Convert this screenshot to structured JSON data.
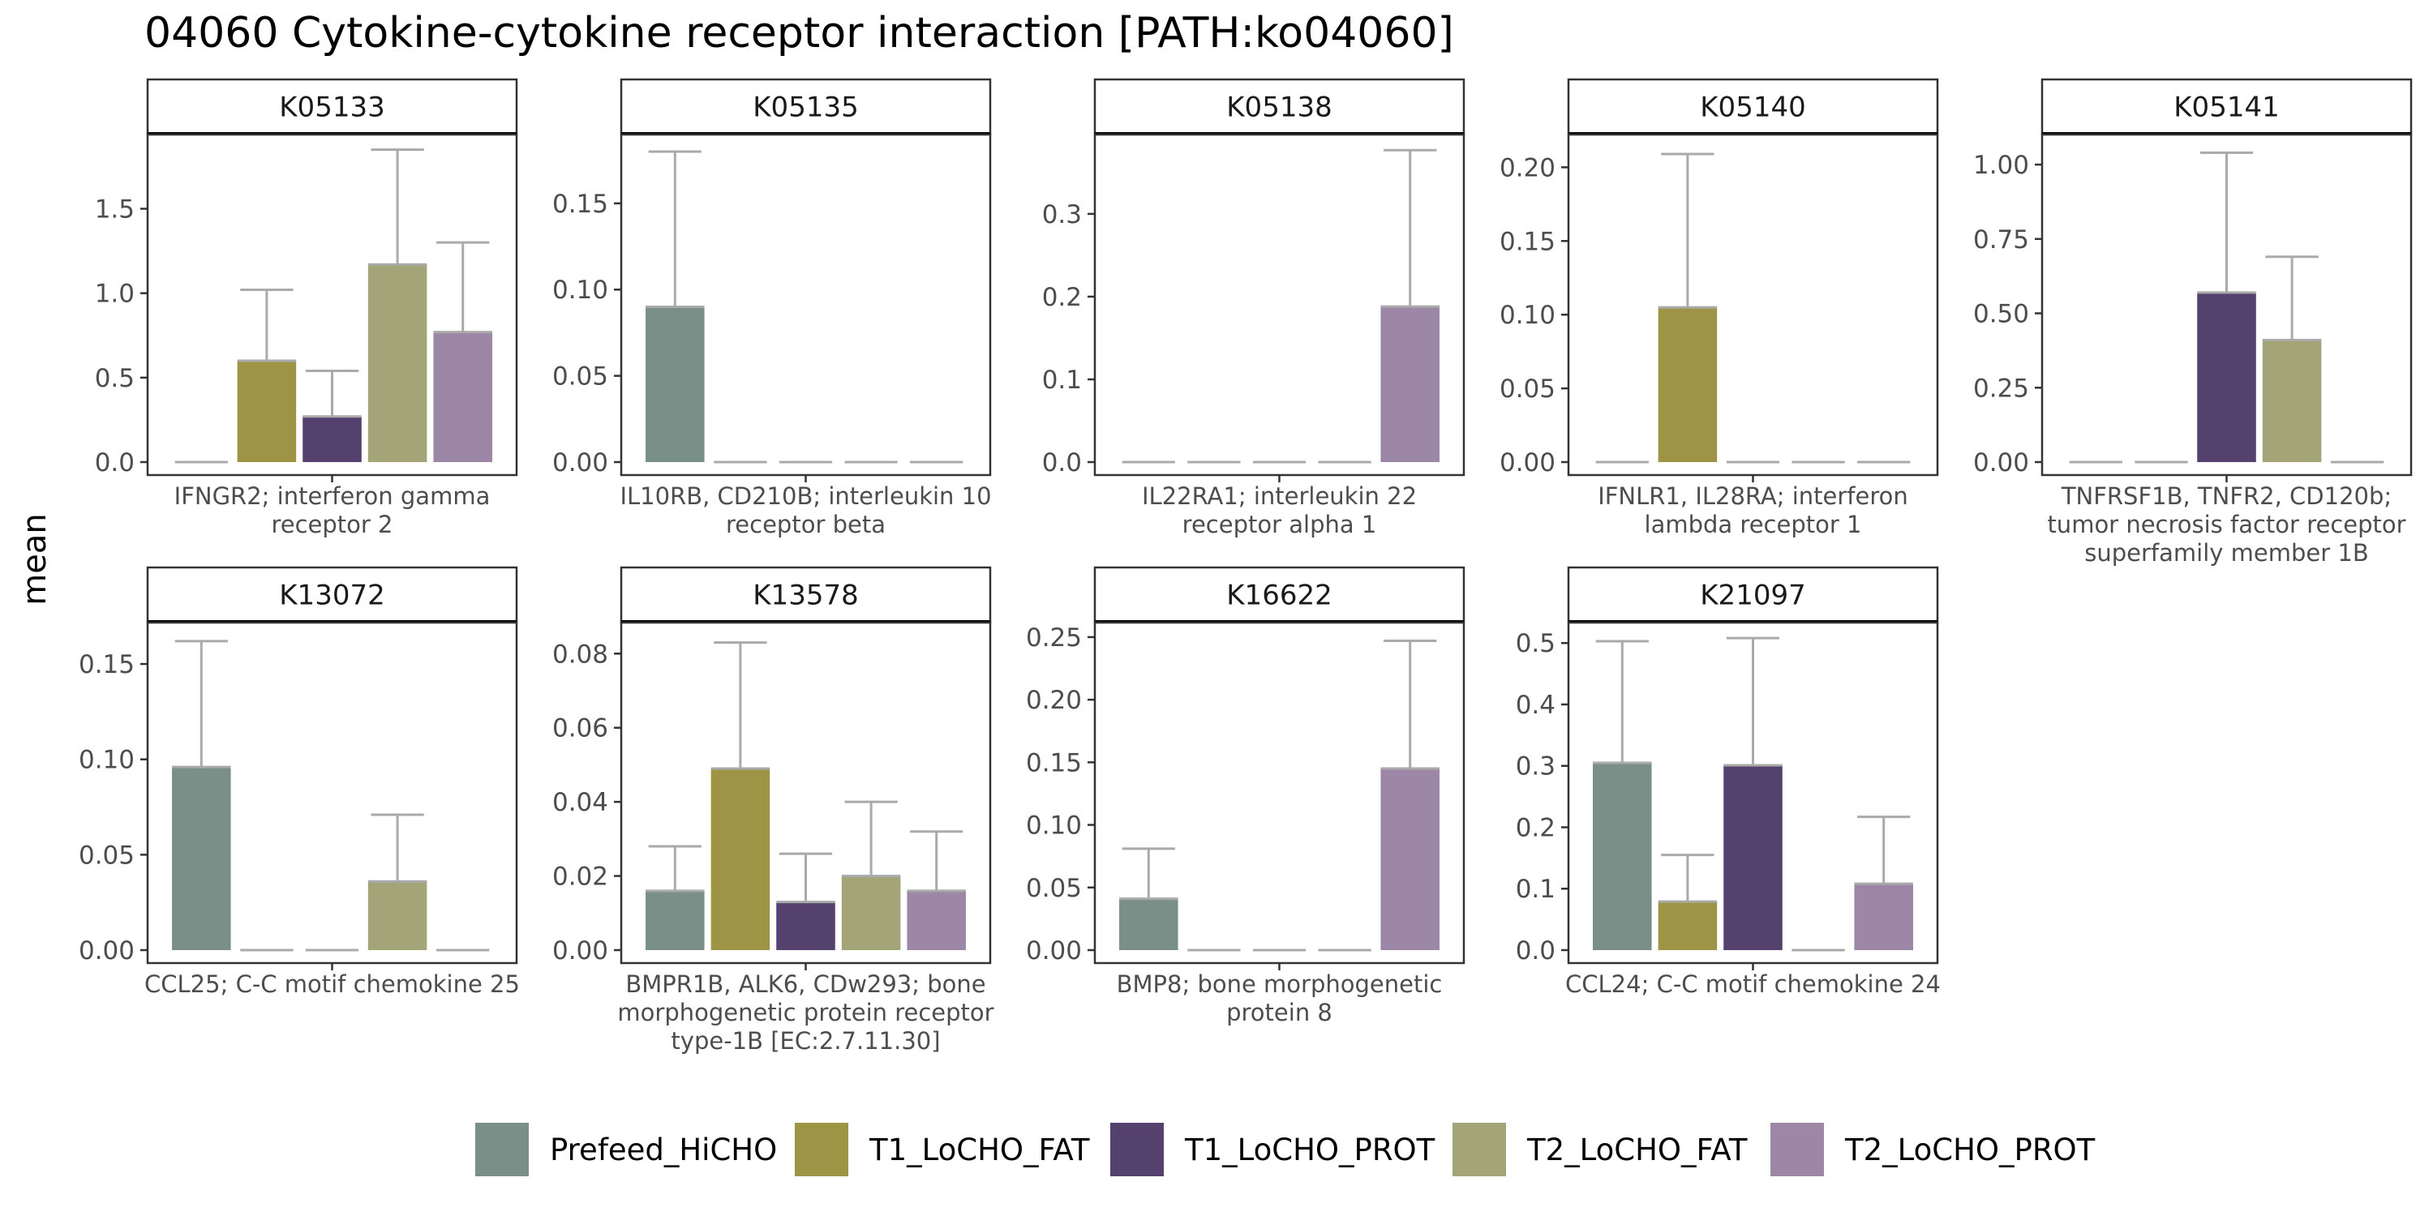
{
  "title": "04060 Cytokine-cytokine receptor interaction [PATH:ko04060]",
  "y_axis_label": "mean",
  "legend": [
    {
      "name": "Prefeed_HiCHO",
      "color": "#7A8F87"
    },
    {
      "name": "T1_LoCHO_FAT",
      "color": "#9D9446"
    },
    {
      "name": "T1_LoCHO_PROT",
      "color": "#54416D"
    },
    {
      "name": "T2_LoCHO_FAT",
      "color": "#A3A578"
    },
    {
      "name": "T2_LoCHO_PROT",
      "color": "#9C87A7"
    }
  ],
  "colors": {
    "error_bar": "#AAAAAA",
    "strip_fill": "#FFFFFF",
    "panel_border": "#333333"
  },
  "chart_data": {
    "type": "bar",
    "facets": "grouped bars with upper error bars",
    "series_order": [
      "Prefeed_HiCHO",
      "T1_LoCHO_FAT",
      "T1_LoCHO_PROT",
      "T2_LoCHO_FAT",
      "T2_LoCHO_PROT"
    ],
    "panels": [
      {
        "id": "K05133",
        "xlabel": [
          "IFNGR2; interferon gamma",
          "receptor 2"
        ],
        "ylim": [
          0,
          1.92
        ],
        "yticks": [
          0.0,
          0.5,
          1.0,
          1.5
        ],
        "tick_labels": [
          "0.0",
          "0.5",
          "1.0",
          "1.5"
        ],
        "values": [
          0.0,
          0.6,
          0.27,
          1.17,
          0.77
        ],
        "upper": [
          0.0,
          1.02,
          0.54,
          1.85,
          1.3
        ]
      },
      {
        "id": "K05135",
        "xlabel": [
          "IL10RB, CD210B; interleukin 10",
          "receptor beta"
        ],
        "ylim": [
          0,
          0.188
        ],
        "yticks": [
          0.0,
          0.05,
          0.1,
          0.15
        ],
        "tick_labels": [
          "0.00",
          "0.05",
          "0.10",
          "0.15"
        ],
        "values": [
          0.09,
          0.0,
          0.0,
          0.0,
          0.0
        ],
        "upper": [
          0.18,
          0.0,
          0.0,
          0.0,
          0.0
        ]
      },
      {
        "id": "K05138",
        "xlabel": [
          "IL22RA1; interleukin 22",
          "receptor alpha 1"
        ],
        "ylim": [
          0,
          0.392
        ],
        "yticks": [
          0.0,
          0.1,
          0.2,
          0.3
        ],
        "tick_labels": [
          "0.0",
          "0.1",
          "0.2",
          "0.3"
        ],
        "values": [
          0.0,
          0.0,
          0.0,
          0.0,
          0.188
        ],
        "upper": [
          0.0,
          0.0,
          0.0,
          0.0,
          0.377
        ]
      },
      {
        "id": "K05140",
        "xlabel": [
          "IFNLR1, IL28RA; interferon",
          "lambda receptor 1"
        ],
        "ylim": [
          0,
          0.22
        ],
        "yticks": [
          0.0,
          0.05,
          0.1,
          0.15,
          0.2
        ],
        "tick_labels": [
          "0.00",
          "0.05",
          "0.10",
          "0.15",
          "0.20"
        ],
        "values": [
          0.0,
          0.105,
          0.0,
          0.0,
          0.0
        ],
        "upper": [
          0.0,
          0.209,
          0.0,
          0.0,
          0.0
        ]
      },
      {
        "id": "K05141",
        "xlabel": [
          "TNFRSF1B, TNFR2, CD120b;",
          "tumor necrosis factor receptor",
          "superfamily member 1B"
        ],
        "ylim": [
          0,
          1.09
        ],
        "yticks": [
          0.0,
          0.25,
          0.5,
          0.75,
          1.0
        ],
        "tick_labels": [
          "0.00",
          "0.25",
          "0.50",
          "0.75",
          "1.00"
        ],
        "values": [
          0.0,
          0.0,
          0.57,
          0.41,
          0.0
        ],
        "upper": [
          0.0,
          0.0,
          1.04,
          0.69,
          0.0
        ]
      },
      {
        "id": "K13072",
        "xlabel": [
          "CCL25; C-C motif chemokine 25"
        ],
        "ylim": [
          0,
          0.17
        ],
        "yticks": [
          0.0,
          0.05,
          0.1,
          0.15
        ],
        "tick_labels": [
          "0.00",
          "0.05",
          "0.10",
          "0.15"
        ],
        "values": [
          0.096,
          0.0,
          0.0,
          0.036,
          0.0
        ],
        "upper": [
          0.162,
          0.0,
          0.0,
          0.071,
          0.0
        ]
      },
      {
        "id": "K13578",
        "xlabel": [
          "BMPR1B, ALK6, CDw293; bone",
          "morphogenetic protein receptor",
          "type-1B [EC:2.7.11.30]"
        ],
        "ylim": [
          0,
          0.0875
        ],
        "yticks": [
          0.0,
          0.02,
          0.04,
          0.06,
          0.08
        ],
        "tick_labels": [
          "0.00",
          "0.02",
          "0.04",
          "0.06",
          "0.08"
        ],
        "values": [
          0.016,
          0.049,
          0.013,
          0.02,
          0.016
        ],
        "upper": [
          0.028,
          0.083,
          0.026,
          0.04,
          0.032
        ]
      },
      {
        "id": "K16622",
        "xlabel": [
          "BMP8; bone morphogenetic",
          "protein 8"
        ],
        "ylim": [
          0,
          0.259
        ],
        "yticks": [
          0.0,
          0.05,
          0.1,
          0.15,
          0.2,
          0.25
        ],
        "tick_labels": [
          "0.00",
          "0.05",
          "0.10",
          "0.15",
          "0.20",
          "0.25"
        ],
        "values": [
          0.041,
          0.0,
          0.0,
          0.0,
          0.145
        ],
        "upper": [
          0.081,
          0.0,
          0.0,
          0.0,
          0.247
        ]
      },
      {
        "id": "K21097",
        "xlabel": [
          "CCL24; C-C motif chemokine 24"
        ],
        "ylim": [
          0,
          0.528
        ],
        "yticks": [
          0.0,
          0.1,
          0.2,
          0.3,
          0.4,
          0.5
        ],
        "tick_labels": [
          "0.0",
          "0.1",
          "0.2",
          "0.3",
          "0.4",
          "0.5"
        ],
        "values": [
          0.305,
          0.079,
          0.301,
          0.0,
          0.108
        ],
        "upper": [
          0.503,
          0.155,
          0.508,
          0.0,
          0.217
        ]
      }
    ]
  }
}
